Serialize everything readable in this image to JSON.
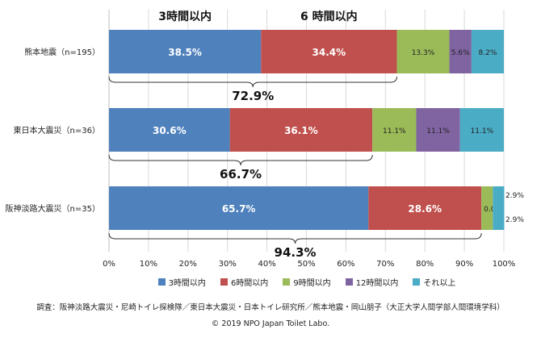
{
  "chart_data": {
    "type": "bar",
    "orientation": "horizontal",
    "stacked": true,
    "categories": [
      "熊本地震（n=195）",
      "東日本大震災（n=36）",
      "阪神淡路大震災（n=35）"
    ],
    "series": [
      {
        "name": "3時間以内",
        "color": "#4f81bd",
        "values": [
          38.5,
          30.6,
          65.7
        ]
      },
      {
        "name": "6時間以内",
        "color": "#c0504d",
        "values": [
          34.4,
          36.1,
          28.6
        ]
      },
      {
        "name": "9時間以内",
        "color": "#9bbb59",
        "values": [
          13.3,
          11.1,
          2.9
        ]
      },
      {
        "name": "12時間以内",
        "color": "#8064a2",
        "values": [
          5.6,
          11.1,
          0.0
        ]
      },
      {
        "name": "それ以上",
        "color": "#4bacc6",
        "values": [
          8.2,
          11.1,
          2.9
        ]
      }
    ],
    "value_labels": [
      [
        "38.5%",
        "34.4%",
        "13.3%",
        "5.6%",
        "8.2%"
      ],
      [
        "30.6%",
        "36.1%",
        "11.1%",
        "11.1%",
        "11.1%"
      ],
      [
        "65.7%",
        "28.6%",
        "2.9%",
        "0.0%",
        "2.9%"
      ]
    ],
    "bracket_totals": [
      "72.9%",
      "66.7%",
      "94.3%"
    ],
    "header_labels": {
      "h3": "3時間以内",
      "h6": "6 時間以内"
    },
    "x_ticks": [
      "0%",
      "10%",
      "20%",
      "30%",
      "40%",
      "50%",
      "60%",
      "70%",
      "80%",
      "90%",
      "100%"
    ],
    "xlim": [
      0,
      100
    ],
    "grid": true,
    "legend_position": "bottom"
  },
  "source_note": "調査：阪神淡路大震災・尼崎トイレ探検隊／東日本大震災・日本トイレ研究所／熊本地震・岡山朋子（大正大学人間学部人間環境学科）",
  "copyright": "© 2019 NPO Japan Toilet Labo."
}
